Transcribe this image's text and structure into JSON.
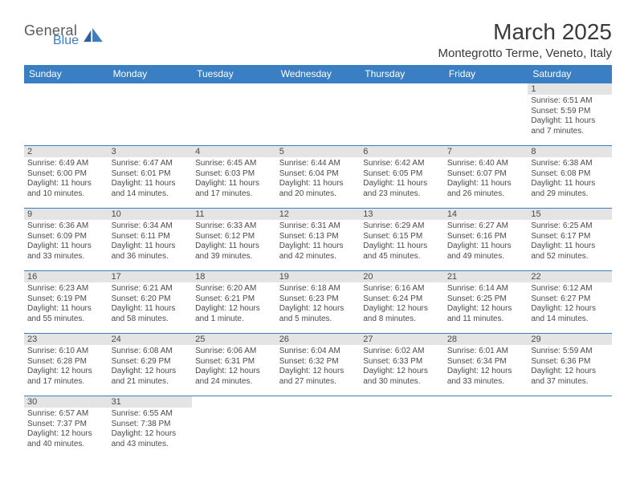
{
  "logo": {
    "line1": "General",
    "line2": "Blue"
  },
  "title": "March 2025",
  "location": "Montegrotto Terme, Veneto, Italy",
  "colors": {
    "header_bg": "#3a7fc4",
    "header_text": "#ffffff",
    "day_border": "#3a7fc4",
    "daynum_bg": "#e4e4e4",
    "text": "#4a4a4a",
    "page_bg": "#ffffff"
  },
  "typography": {
    "title_fontsize": 28,
    "location_fontsize": 15,
    "dayheader_fontsize": 12,
    "daynum_fontsize": 11,
    "body_fontsize": 10
  },
  "day_headers": [
    "Sunday",
    "Monday",
    "Tuesday",
    "Wednesday",
    "Thursday",
    "Friday",
    "Saturday"
  ],
  "weeks": [
    [
      null,
      null,
      null,
      null,
      null,
      null,
      {
        "n": "1",
        "sunrise": "Sunrise: 6:51 AM",
        "sunset": "Sunset: 5:59 PM",
        "daylight": "Daylight: 11 hours and 7 minutes."
      }
    ],
    [
      {
        "n": "2",
        "sunrise": "Sunrise: 6:49 AM",
        "sunset": "Sunset: 6:00 PM",
        "daylight": "Daylight: 11 hours and 10 minutes."
      },
      {
        "n": "3",
        "sunrise": "Sunrise: 6:47 AM",
        "sunset": "Sunset: 6:01 PM",
        "daylight": "Daylight: 11 hours and 14 minutes."
      },
      {
        "n": "4",
        "sunrise": "Sunrise: 6:45 AM",
        "sunset": "Sunset: 6:03 PM",
        "daylight": "Daylight: 11 hours and 17 minutes."
      },
      {
        "n": "5",
        "sunrise": "Sunrise: 6:44 AM",
        "sunset": "Sunset: 6:04 PM",
        "daylight": "Daylight: 11 hours and 20 minutes."
      },
      {
        "n": "6",
        "sunrise": "Sunrise: 6:42 AM",
        "sunset": "Sunset: 6:05 PM",
        "daylight": "Daylight: 11 hours and 23 minutes."
      },
      {
        "n": "7",
        "sunrise": "Sunrise: 6:40 AM",
        "sunset": "Sunset: 6:07 PM",
        "daylight": "Daylight: 11 hours and 26 minutes."
      },
      {
        "n": "8",
        "sunrise": "Sunrise: 6:38 AM",
        "sunset": "Sunset: 6:08 PM",
        "daylight": "Daylight: 11 hours and 29 minutes."
      }
    ],
    [
      {
        "n": "9",
        "sunrise": "Sunrise: 6:36 AM",
        "sunset": "Sunset: 6:09 PM",
        "daylight": "Daylight: 11 hours and 33 minutes."
      },
      {
        "n": "10",
        "sunrise": "Sunrise: 6:34 AM",
        "sunset": "Sunset: 6:11 PM",
        "daylight": "Daylight: 11 hours and 36 minutes."
      },
      {
        "n": "11",
        "sunrise": "Sunrise: 6:33 AM",
        "sunset": "Sunset: 6:12 PM",
        "daylight": "Daylight: 11 hours and 39 minutes."
      },
      {
        "n": "12",
        "sunrise": "Sunrise: 6:31 AM",
        "sunset": "Sunset: 6:13 PM",
        "daylight": "Daylight: 11 hours and 42 minutes."
      },
      {
        "n": "13",
        "sunrise": "Sunrise: 6:29 AM",
        "sunset": "Sunset: 6:15 PM",
        "daylight": "Daylight: 11 hours and 45 minutes."
      },
      {
        "n": "14",
        "sunrise": "Sunrise: 6:27 AM",
        "sunset": "Sunset: 6:16 PM",
        "daylight": "Daylight: 11 hours and 49 minutes."
      },
      {
        "n": "15",
        "sunrise": "Sunrise: 6:25 AM",
        "sunset": "Sunset: 6:17 PM",
        "daylight": "Daylight: 11 hours and 52 minutes."
      }
    ],
    [
      {
        "n": "16",
        "sunrise": "Sunrise: 6:23 AM",
        "sunset": "Sunset: 6:19 PM",
        "daylight": "Daylight: 11 hours and 55 minutes."
      },
      {
        "n": "17",
        "sunrise": "Sunrise: 6:21 AM",
        "sunset": "Sunset: 6:20 PM",
        "daylight": "Daylight: 11 hours and 58 minutes."
      },
      {
        "n": "18",
        "sunrise": "Sunrise: 6:20 AM",
        "sunset": "Sunset: 6:21 PM",
        "daylight": "Daylight: 12 hours and 1 minute."
      },
      {
        "n": "19",
        "sunrise": "Sunrise: 6:18 AM",
        "sunset": "Sunset: 6:23 PM",
        "daylight": "Daylight: 12 hours and 5 minutes."
      },
      {
        "n": "20",
        "sunrise": "Sunrise: 6:16 AM",
        "sunset": "Sunset: 6:24 PM",
        "daylight": "Daylight: 12 hours and 8 minutes."
      },
      {
        "n": "21",
        "sunrise": "Sunrise: 6:14 AM",
        "sunset": "Sunset: 6:25 PM",
        "daylight": "Daylight: 12 hours and 11 minutes."
      },
      {
        "n": "22",
        "sunrise": "Sunrise: 6:12 AM",
        "sunset": "Sunset: 6:27 PM",
        "daylight": "Daylight: 12 hours and 14 minutes."
      }
    ],
    [
      {
        "n": "23",
        "sunrise": "Sunrise: 6:10 AM",
        "sunset": "Sunset: 6:28 PM",
        "daylight": "Daylight: 12 hours and 17 minutes."
      },
      {
        "n": "24",
        "sunrise": "Sunrise: 6:08 AM",
        "sunset": "Sunset: 6:29 PM",
        "daylight": "Daylight: 12 hours and 21 minutes."
      },
      {
        "n": "25",
        "sunrise": "Sunrise: 6:06 AM",
        "sunset": "Sunset: 6:31 PM",
        "daylight": "Daylight: 12 hours and 24 minutes."
      },
      {
        "n": "26",
        "sunrise": "Sunrise: 6:04 AM",
        "sunset": "Sunset: 6:32 PM",
        "daylight": "Daylight: 12 hours and 27 minutes."
      },
      {
        "n": "27",
        "sunrise": "Sunrise: 6:02 AM",
        "sunset": "Sunset: 6:33 PM",
        "daylight": "Daylight: 12 hours and 30 minutes."
      },
      {
        "n": "28",
        "sunrise": "Sunrise: 6:01 AM",
        "sunset": "Sunset: 6:34 PM",
        "daylight": "Daylight: 12 hours and 33 minutes."
      },
      {
        "n": "29",
        "sunrise": "Sunrise: 5:59 AM",
        "sunset": "Sunset: 6:36 PM",
        "daylight": "Daylight: 12 hours and 37 minutes."
      }
    ],
    [
      {
        "n": "30",
        "sunrise": "Sunrise: 6:57 AM",
        "sunset": "Sunset: 7:37 PM",
        "daylight": "Daylight: 12 hours and 40 minutes."
      },
      {
        "n": "31",
        "sunrise": "Sunrise: 6:55 AM",
        "sunset": "Sunset: 7:38 PM",
        "daylight": "Daylight: 12 hours and 43 minutes."
      },
      null,
      null,
      null,
      null,
      null
    ]
  ]
}
